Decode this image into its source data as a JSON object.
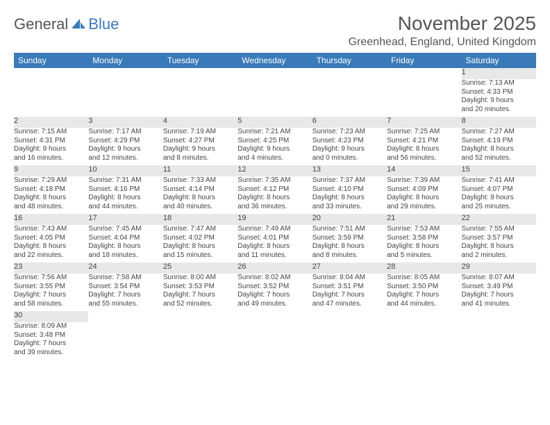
{
  "logo": {
    "part1": "General",
    "part2": "Blue"
  },
  "title": "November 2025",
  "location": "Greenhead, England, United Kingdom",
  "colors": {
    "header_bg": "#3a7ab8",
    "header_text": "#ffffff",
    "daynum_bg": "#e8e8e8",
    "border": "#3a7ab8",
    "text": "#444444",
    "title_text": "#555555"
  },
  "weekdays": [
    "Sunday",
    "Monday",
    "Tuesday",
    "Wednesday",
    "Thursday",
    "Friday",
    "Saturday"
  ],
  "weeks": [
    {
      "days": [
        null,
        null,
        null,
        null,
        null,
        null,
        {
          "n": "1",
          "sr": "Sunrise: 7:13 AM",
          "ss": "Sunset: 4:33 PM",
          "d1": "Daylight: 9 hours",
          "d2": "and 20 minutes."
        }
      ]
    },
    {
      "days": [
        {
          "n": "2",
          "sr": "Sunrise: 7:15 AM",
          "ss": "Sunset: 4:31 PM",
          "d1": "Daylight: 9 hours",
          "d2": "and 16 minutes."
        },
        {
          "n": "3",
          "sr": "Sunrise: 7:17 AM",
          "ss": "Sunset: 4:29 PM",
          "d1": "Daylight: 9 hours",
          "d2": "and 12 minutes."
        },
        {
          "n": "4",
          "sr": "Sunrise: 7:19 AM",
          "ss": "Sunset: 4:27 PM",
          "d1": "Daylight: 9 hours",
          "d2": "and 8 minutes."
        },
        {
          "n": "5",
          "sr": "Sunrise: 7:21 AM",
          "ss": "Sunset: 4:25 PM",
          "d1": "Daylight: 9 hours",
          "d2": "and 4 minutes."
        },
        {
          "n": "6",
          "sr": "Sunrise: 7:23 AM",
          "ss": "Sunset: 4:23 PM",
          "d1": "Daylight: 9 hours",
          "d2": "and 0 minutes."
        },
        {
          "n": "7",
          "sr": "Sunrise: 7:25 AM",
          "ss": "Sunset: 4:21 PM",
          "d1": "Daylight: 8 hours",
          "d2": "and 56 minutes."
        },
        {
          "n": "8",
          "sr": "Sunrise: 7:27 AM",
          "ss": "Sunset: 4:19 PM",
          "d1": "Daylight: 8 hours",
          "d2": "and 52 minutes."
        }
      ]
    },
    {
      "days": [
        {
          "n": "9",
          "sr": "Sunrise: 7:29 AM",
          "ss": "Sunset: 4:18 PM",
          "d1": "Daylight: 8 hours",
          "d2": "and 48 minutes."
        },
        {
          "n": "10",
          "sr": "Sunrise: 7:31 AM",
          "ss": "Sunset: 4:16 PM",
          "d1": "Daylight: 8 hours",
          "d2": "and 44 minutes."
        },
        {
          "n": "11",
          "sr": "Sunrise: 7:33 AM",
          "ss": "Sunset: 4:14 PM",
          "d1": "Daylight: 8 hours",
          "d2": "and 40 minutes."
        },
        {
          "n": "12",
          "sr": "Sunrise: 7:35 AM",
          "ss": "Sunset: 4:12 PM",
          "d1": "Daylight: 8 hours",
          "d2": "and 36 minutes."
        },
        {
          "n": "13",
          "sr": "Sunrise: 7:37 AM",
          "ss": "Sunset: 4:10 PM",
          "d1": "Daylight: 8 hours",
          "d2": "and 33 minutes."
        },
        {
          "n": "14",
          "sr": "Sunrise: 7:39 AM",
          "ss": "Sunset: 4:09 PM",
          "d1": "Daylight: 8 hours",
          "d2": "and 29 minutes."
        },
        {
          "n": "15",
          "sr": "Sunrise: 7:41 AM",
          "ss": "Sunset: 4:07 PM",
          "d1": "Daylight: 8 hours",
          "d2": "and 25 minutes."
        }
      ]
    },
    {
      "days": [
        {
          "n": "16",
          "sr": "Sunrise: 7:43 AM",
          "ss": "Sunset: 4:05 PM",
          "d1": "Daylight: 8 hours",
          "d2": "and 22 minutes."
        },
        {
          "n": "17",
          "sr": "Sunrise: 7:45 AM",
          "ss": "Sunset: 4:04 PM",
          "d1": "Daylight: 8 hours",
          "d2": "and 18 minutes."
        },
        {
          "n": "18",
          "sr": "Sunrise: 7:47 AM",
          "ss": "Sunset: 4:02 PM",
          "d1": "Daylight: 8 hours",
          "d2": "and 15 minutes."
        },
        {
          "n": "19",
          "sr": "Sunrise: 7:49 AM",
          "ss": "Sunset: 4:01 PM",
          "d1": "Daylight: 8 hours",
          "d2": "and 11 minutes."
        },
        {
          "n": "20",
          "sr": "Sunrise: 7:51 AM",
          "ss": "Sunset: 3:59 PM",
          "d1": "Daylight: 8 hours",
          "d2": "and 8 minutes."
        },
        {
          "n": "21",
          "sr": "Sunrise: 7:53 AM",
          "ss": "Sunset: 3:58 PM",
          "d1": "Daylight: 8 hours",
          "d2": "and 5 minutes."
        },
        {
          "n": "22",
          "sr": "Sunrise: 7:55 AM",
          "ss": "Sunset: 3:57 PM",
          "d1": "Daylight: 8 hours",
          "d2": "and 2 minutes."
        }
      ]
    },
    {
      "days": [
        {
          "n": "23",
          "sr": "Sunrise: 7:56 AM",
          "ss": "Sunset: 3:55 PM",
          "d1": "Daylight: 7 hours",
          "d2": "and 58 minutes."
        },
        {
          "n": "24",
          "sr": "Sunrise: 7:58 AM",
          "ss": "Sunset: 3:54 PM",
          "d1": "Daylight: 7 hours",
          "d2": "and 55 minutes."
        },
        {
          "n": "25",
          "sr": "Sunrise: 8:00 AM",
          "ss": "Sunset: 3:53 PM",
          "d1": "Daylight: 7 hours",
          "d2": "and 52 minutes."
        },
        {
          "n": "26",
          "sr": "Sunrise: 8:02 AM",
          "ss": "Sunset: 3:52 PM",
          "d1": "Daylight: 7 hours",
          "d2": "and 49 minutes."
        },
        {
          "n": "27",
          "sr": "Sunrise: 8:04 AM",
          "ss": "Sunset: 3:51 PM",
          "d1": "Daylight: 7 hours",
          "d2": "and 47 minutes."
        },
        {
          "n": "28",
          "sr": "Sunrise: 8:05 AM",
          "ss": "Sunset: 3:50 PM",
          "d1": "Daylight: 7 hours",
          "d2": "and 44 minutes."
        },
        {
          "n": "29",
          "sr": "Sunrise: 8:07 AM",
          "ss": "Sunset: 3:49 PM",
          "d1": "Daylight: 7 hours",
          "d2": "and 41 minutes."
        }
      ]
    },
    {
      "days": [
        {
          "n": "30",
          "sr": "Sunrise: 8:09 AM",
          "ss": "Sunset: 3:48 PM",
          "d1": "Daylight: 7 hours",
          "d2": "and 39 minutes."
        },
        null,
        null,
        null,
        null,
        null,
        null
      ]
    }
  ]
}
